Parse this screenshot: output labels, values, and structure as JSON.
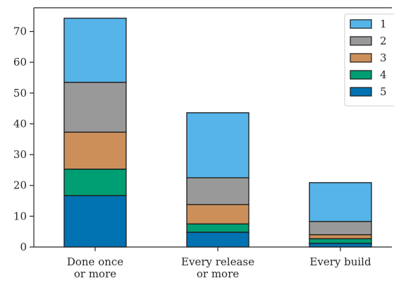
{
  "chart_data": {
    "type": "bar",
    "stacked": true,
    "categories": [
      [
        "Done once",
        "or more"
      ],
      [
        "Every release",
        "or more"
      ],
      [
        "Every build"
      ]
    ],
    "series": [
      {
        "name": "5",
        "color": "#0072b2",
        "values": [
          16.7,
          4.8,
          1.2
        ]
      },
      {
        "name": "4",
        "color": "#009e73",
        "values": [
          8.6,
          2.7,
          1.5
        ]
      },
      {
        "name": "3",
        "color": "#cc8f5a",
        "values": [
          12.0,
          6.3,
          1.3
        ]
      },
      {
        "name": "2",
        "color": "#999999",
        "values": [
          16.2,
          8.7,
          4.3
        ]
      },
      {
        "name": "1",
        "color": "#56b4e9",
        "values": [
          20.8,
          21.1,
          12.6
        ]
      }
    ],
    "legend_order": [
      "1",
      "2",
      "3",
      "4",
      "5"
    ],
    "yticks": [
      0,
      10,
      20,
      30,
      40,
      50,
      60,
      70
    ],
    "ylim": [
      0,
      77.7
    ],
    "grid": false,
    "legend_position": "top-right",
    "title": "",
    "xlabel": "",
    "ylabel": ""
  }
}
